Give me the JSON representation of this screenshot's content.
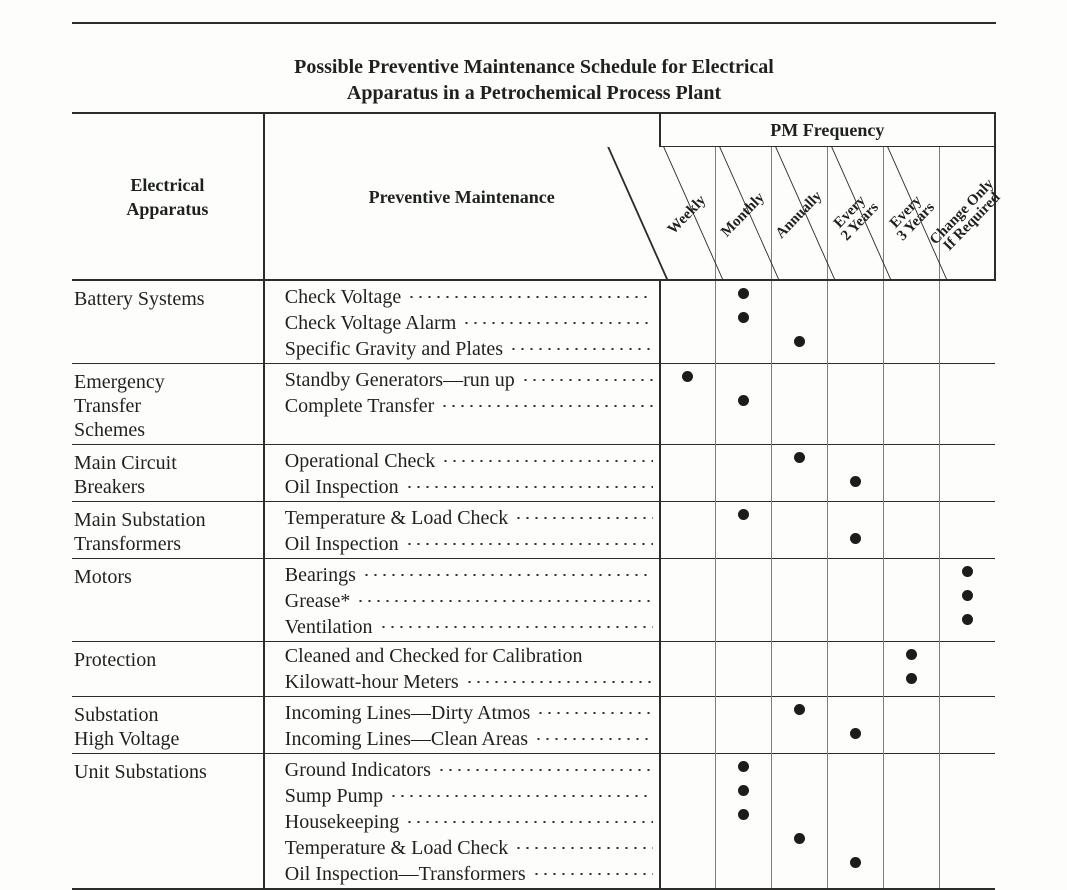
{
  "title_line1": "Possible Preventive Maintenance Schedule for Electrical",
  "title_line2": "Apparatus in a Petrochemical Process Plant",
  "headers": {
    "apparatus": "Electrical\nApparatus",
    "maintenance": "Preventive Maintenance",
    "pm_frequency": "PM Frequency"
  },
  "freq_cols": [
    "Weekly",
    "Monthly",
    "Annually",
    "Every\n2 Years",
    "Every\n3 Years",
    "Change Only\nIf Required"
  ],
  "groups": [
    {
      "apparatus": "Battery Systems",
      "items": [
        {
          "label": "Check Voltage",
          "marks": [
            0,
            1,
            0,
            0,
            0,
            0
          ]
        },
        {
          "label": "Check Voltage Alarm",
          "marks": [
            0,
            1,
            0,
            0,
            0,
            0
          ]
        },
        {
          "label": "Specific Gravity and Plates",
          "marks": [
            0,
            0,
            1,
            0,
            0,
            0
          ]
        }
      ]
    },
    {
      "apparatus": "Emergency\nTransfer\nSchemes",
      "items": [
        {
          "label": "Standby Generators—run up",
          "marks": [
            1,
            0,
            0,
            0,
            0,
            0
          ]
        },
        {
          "label": "Complete Transfer",
          "marks": [
            0,
            1,
            0,
            0,
            0,
            0
          ]
        }
      ]
    },
    {
      "apparatus": "Main Circuit\nBreakers",
      "items": [
        {
          "label": "Operational Check",
          "marks": [
            0,
            0,
            1,
            0,
            0,
            0
          ]
        },
        {
          "label": "Oil Inspection",
          "marks": [
            0,
            0,
            0,
            1,
            0,
            0
          ]
        }
      ]
    },
    {
      "apparatus": "Main Substation\nTransformers",
      "items": [
        {
          "label": "Temperature & Load Check",
          "marks": [
            0,
            1,
            0,
            0,
            0,
            0
          ]
        },
        {
          "label": "Oil Inspection",
          "marks": [
            0,
            0,
            0,
            1,
            0,
            0
          ]
        }
      ]
    },
    {
      "apparatus": "Motors",
      "items": [
        {
          "label": "Bearings",
          "marks": [
            0,
            0,
            0,
            0,
            0,
            1
          ]
        },
        {
          "label": "Grease*",
          "marks": [
            0,
            0,
            0,
            0,
            0,
            1
          ]
        },
        {
          "label": "Ventilation",
          "marks": [
            0,
            0,
            0,
            0,
            0,
            1
          ]
        }
      ]
    },
    {
      "apparatus": "Protection",
      "items": [
        {
          "label": "Cleaned and Checked for Calibration",
          "marks": [
            0,
            0,
            0,
            0,
            1,
            0
          ],
          "no_leader": true
        },
        {
          "label": "Kilowatt-hour Meters",
          "marks": [
            0,
            0,
            0,
            0,
            1,
            0
          ]
        }
      ]
    },
    {
      "apparatus": "Substation\nHigh Voltage",
      "items": [
        {
          "label": "Incoming Lines—Dirty Atmos",
          "marks": [
            0,
            0,
            1,
            0,
            0,
            0
          ]
        },
        {
          "label": "Incoming Lines—Clean Areas",
          "marks": [
            0,
            0,
            0,
            1,
            0,
            0
          ]
        }
      ]
    },
    {
      "apparatus": "Unit Substations",
      "items": [
        {
          "label": "Ground Indicators",
          "marks": [
            0,
            1,
            0,
            0,
            0,
            0
          ]
        },
        {
          "label": "Sump Pump",
          "marks": [
            0,
            1,
            0,
            0,
            0,
            0
          ]
        },
        {
          "label": "Housekeeping",
          "marks": [
            0,
            1,
            0,
            0,
            0,
            0
          ]
        },
        {
          "label": "Temperature & Load Check",
          "marks": [
            0,
            0,
            1,
            0,
            0,
            0
          ]
        },
        {
          "label": "Oil Inspection—Transformers",
          "marks": [
            0,
            0,
            0,
            1,
            0,
            0
          ]
        }
      ]
    }
  ],
  "colors": {
    "ink": "#1e221e",
    "rule": "#2a2e2a",
    "grid": "#7c807a",
    "bg": "#fdfdfc"
  }
}
